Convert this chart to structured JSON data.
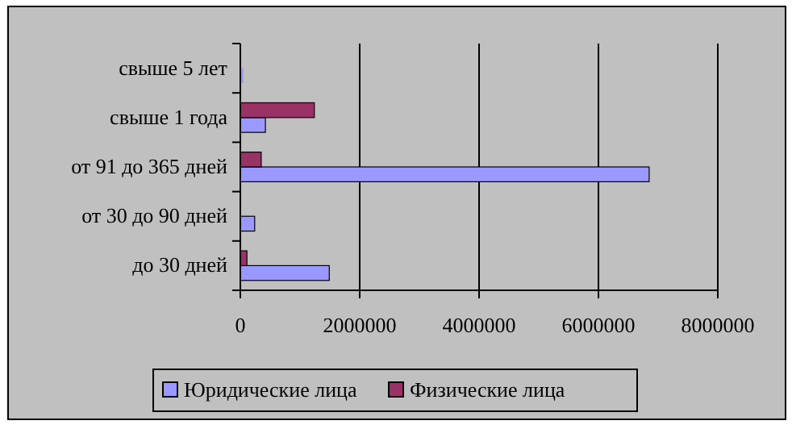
{
  "chart_data": {
    "type": "bar",
    "orientation": "horizontal",
    "categories": [
      "свыше 5 лет",
      "свыше 1 года",
      "от 91 до 365 дней",
      "от 30 до 90 дней",
      "до 30 дней"
    ],
    "series": [
      {
        "name": "Юридические лица",
        "color": "#9999ff",
        "values": [
          50000,
          420000,
          6850000,
          240000,
          1490000
        ]
      },
      {
        "name": "Физические лица",
        "color": "#993366",
        "values": [
          null,
          1240000,
          350000,
          null,
          110000
        ]
      }
    ],
    "xlim": [
      0,
      8000000
    ],
    "xticks": [
      0,
      2000000,
      4000000,
      6000000,
      8000000
    ],
    "grid": "x",
    "legend": "bottom"
  }
}
